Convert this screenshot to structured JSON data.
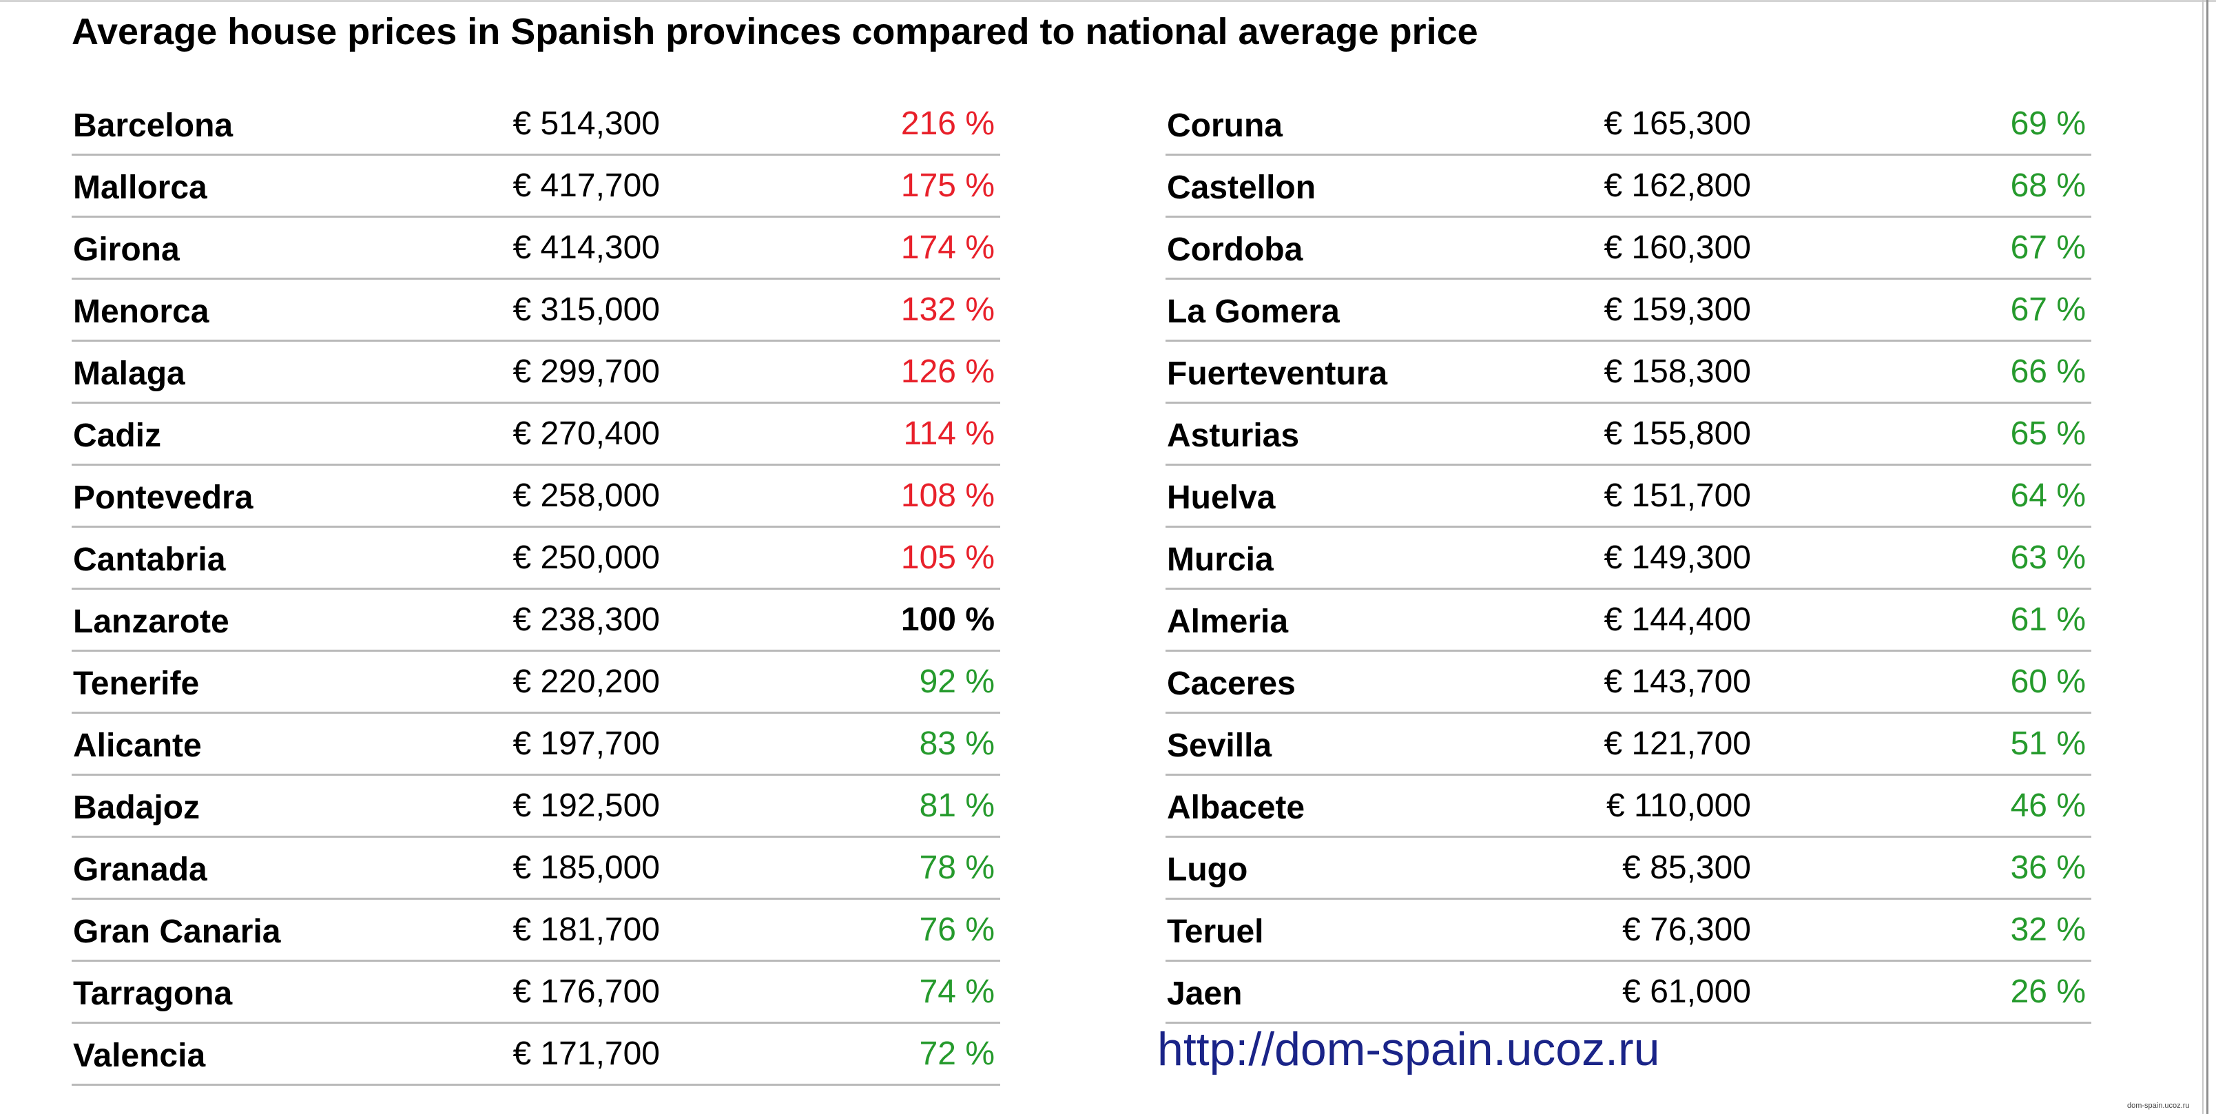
{
  "title": "Average house prices in Spanish provinces compared to national average price",
  "colors": {
    "above_average": "#e8202a",
    "average": "#000000",
    "below_average": "#259a2c",
    "url": "#1a2488"
  },
  "left_table": [
    {
      "province": "Barcelona",
      "price": "€ 514,300",
      "percent": "216 %",
      "status": "above"
    },
    {
      "province": "Mallorca",
      "price": "€ 417,700",
      "percent": "175 %",
      "status": "above"
    },
    {
      "province": "Girona",
      "price": "€ 414,300",
      "percent": "174 %",
      "status": "above"
    },
    {
      "province": "Menorca",
      "price": "€ 315,000",
      "percent": "132 %",
      "status": "above"
    },
    {
      "province": "Malaga",
      "price": "€ 299,700",
      "percent": "126 %",
      "status": "above"
    },
    {
      "province": "Cadiz",
      "price": "€ 270,400",
      "percent": "114 %",
      "status": "above"
    },
    {
      "province": "Pontevedra",
      "price": "€ 258,000",
      "percent": "108 %",
      "status": "above"
    },
    {
      "province": "Cantabria",
      "price": "€ 250,000",
      "percent": "105 %",
      "status": "above"
    },
    {
      "province": "Lanzarote",
      "price": "€ 238,300",
      "percent": "100 %",
      "status": "base"
    },
    {
      "province": "Tenerife",
      "price": "€ 220,200",
      "percent": "92 %",
      "status": "below"
    },
    {
      "province": "Alicante",
      "price": "€ 197,700",
      "percent": "83 %",
      "status": "below"
    },
    {
      "province": "Badajoz",
      "price": "€ 192,500",
      "percent": "81 %",
      "status": "below"
    },
    {
      "province": "Granada",
      "price": "€ 185,000",
      "percent": "78 %",
      "status": "below"
    },
    {
      "province": "Gran Canaria",
      "price": "€ 181,700",
      "percent": "76 %",
      "status": "below"
    },
    {
      "province": "Tarragona",
      "price": "€ 176,700",
      "percent": "74 %",
      "status": "below"
    },
    {
      "province": "Valencia",
      "price": "€ 171,700",
      "percent": "72 %",
      "status": "below"
    }
  ],
  "right_table": [
    {
      "province": "Coruna",
      "price": "€ 165,300",
      "percent": "69 %",
      "status": "below"
    },
    {
      "province": "Castellon",
      "price": "€ 162,800",
      "percent": "68 %",
      "status": "below"
    },
    {
      "province": "Cordoba",
      "price": "€ 160,300",
      "percent": "67 %",
      "status": "below"
    },
    {
      "province": "La Gomera",
      "price": "€ 159,300",
      "percent": "67 %",
      "status": "below"
    },
    {
      "province": "Fuerteventura",
      "price": "€ 158,300",
      "percent": "66 %",
      "status": "below"
    },
    {
      "province": "Asturias",
      "price": "€ 155,800",
      "percent": "65 %",
      "status": "below"
    },
    {
      "province": "Huelva",
      "price": "€ 151,700",
      "percent": "64 %",
      "status": "below"
    },
    {
      "province": "Murcia",
      "price": "€ 149,300",
      "percent": "63 %",
      "status": "below"
    },
    {
      "province": "Almeria",
      "price": "€ 144,400",
      "percent": "61 %",
      "status": "below"
    },
    {
      "province": "Caceres",
      "price": "€ 143,700",
      "percent": "60 %",
      "status": "below"
    },
    {
      "province": "Sevilla",
      "price": "€ 121,700",
      "percent": "51 %",
      "status": "below"
    },
    {
      "province": "Albacete",
      "price": "€ 110,000",
      "percent": "46 %",
      "status": "below"
    },
    {
      "province": "Lugo",
      "price": "€ 85,300",
      "percent": "36 %",
      "status": "below"
    },
    {
      "province": "Teruel",
      "price": "€ 76,300",
      "percent": "32 %",
      "status": "below"
    },
    {
      "province": "Jaen",
      "price": "€ 61,000",
      "percent": "26 %",
      "status": "below"
    }
  ],
  "footer": {
    "url": "http://dom-spain.ucoz.ru",
    "watermark": "dom-spain.ucoz.ru"
  }
}
